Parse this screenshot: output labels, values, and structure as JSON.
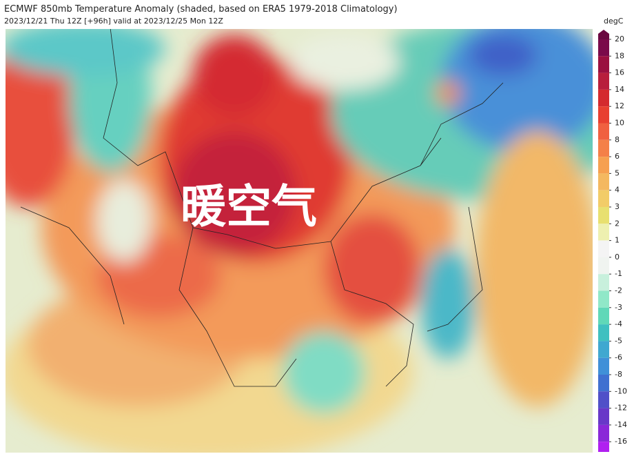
{
  "map": {
    "title": "ECMWF 850mb Temperature Anomaly (shaded, based on ERA5 1979-2018 Climatology)",
    "subtitle": "2023/12/21 Thu 12Z [+96h] valid at 2023/12/25 Mon 12Z",
    "annotation": "暖空气"
  },
  "colorbar": {
    "unit": "degC",
    "ticks": [
      20,
      18,
      16,
      14,
      12,
      10,
      8,
      6,
      5,
      4,
      3,
      2,
      1,
      0,
      -1,
      -2,
      -3,
      -4,
      -5,
      -6,
      -8,
      -10,
      -12,
      -14,
      -16
    ]
  }
}
